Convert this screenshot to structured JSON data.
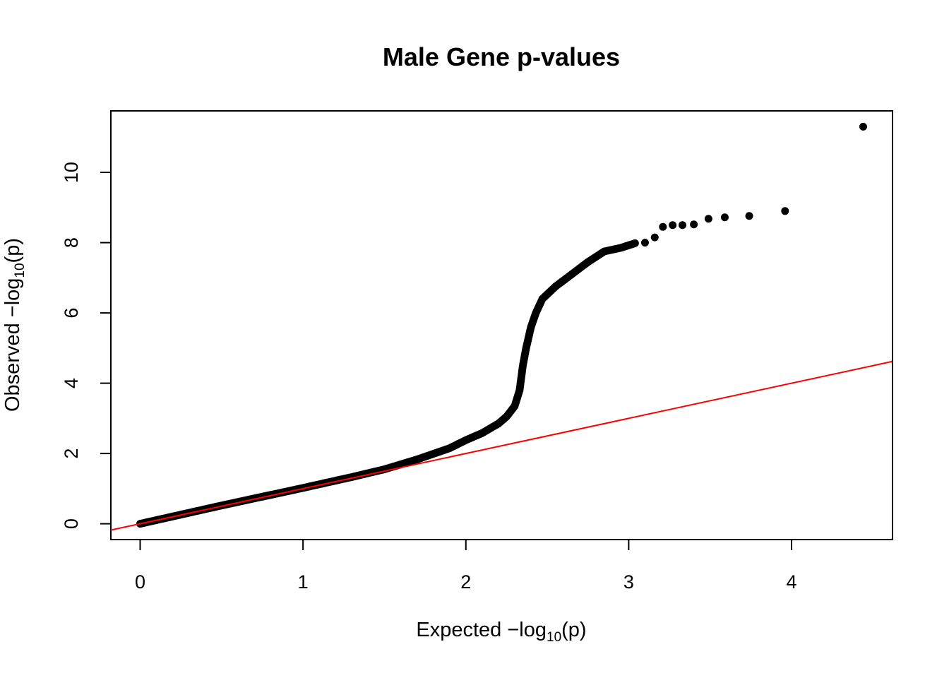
{
  "chart_data": {
    "type": "scatter",
    "title": "Male Gene p-values",
    "xlabel": {
      "prefix": "Expected  −log",
      "sub": "10",
      "suffix": "(p)"
    },
    "ylabel": {
      "prefix": "Observed  −log",
      "sub": "10",
      "suffix": "(p)"
    },
    "xlim": [
      -0.18,
      4.62
    ],
    "ylim": [
      -0.45,
      11.75
    ],
    "x_ticks": [
      0,
      1,
      2,
      3,
      4
    ],
    "x_tick_labels": [
      "0",
      "1",
      "2",
      "3",
      "4"
    ],
    "y_ticks": [
      0,
      2,
      4,
      6,
      8,
      10
    ],
    "y_tick_labels": [
      "0",
      "2",
      "4",
      "6",
      "8",
      "10"
    ],
    "grid": false,
    "point_color": "#000000",
    "reference_line": {
      "slope": 1,
      "intercept": 0,
      "color": "#ff0000"
    },
    "curve_knots": [
      [
        0,
        0
      ],
      [
        0.5,
        0.52
      ],
      [
        1.0,
        1.02
      ],
      [
        1.3,
        1.33
      ],
      [
        1.5,
        1.55
      ],
      [
        1.7,
        1.83
      ],
      [
        1.9,
        2.15
      ],
      [
        2.0,
        2.38
      ],
      [
        2.1,
        2.58
      ],
      [
        2.2,
        2.85
      ],
      [
        2.25,
        3.05
      ],
      [
        2.3,
        3.35
      ],
      [
        2.33,
        3.8
      ],
      [
        2.35,
        4.5
      ],
      [
        2.37,
        5.0
      ],
      [
        2.4,
        5.6
      ],
      [
        2.43,
        6.0
      ],
      [
        2.47,
        6.4
      ],
      [
        2.55,
        6.75
      ],
      [
        2.65,
        7.1
      ],
      [
        2.75,
        7.45
      ],
      [
        2.85,
        7.75
      ],
      [
        2.95,
        7.85
      ],
      [
        3.05,
        8.0
      ]
    ],
    "points": [
      [
        3.1,
        8.0
      ],
      [
        3.16,
        8.15
      ],
      [
        3.21,
        8.45
      ],
      [
        3.27,
        8.5
      ],
      [
        3.33,
        8.5
      ],
      [
        3.4,
        8.52
      ],
      [
        3.49,
        8.68
      ],
      [
        3.59,
        8.72
      ],
      [
        3.74,
        8.76
      ],
      [
        3.96,
        8.9
      ],
      [
        4.44,
        11.3
      ]
    ]
  }
}
